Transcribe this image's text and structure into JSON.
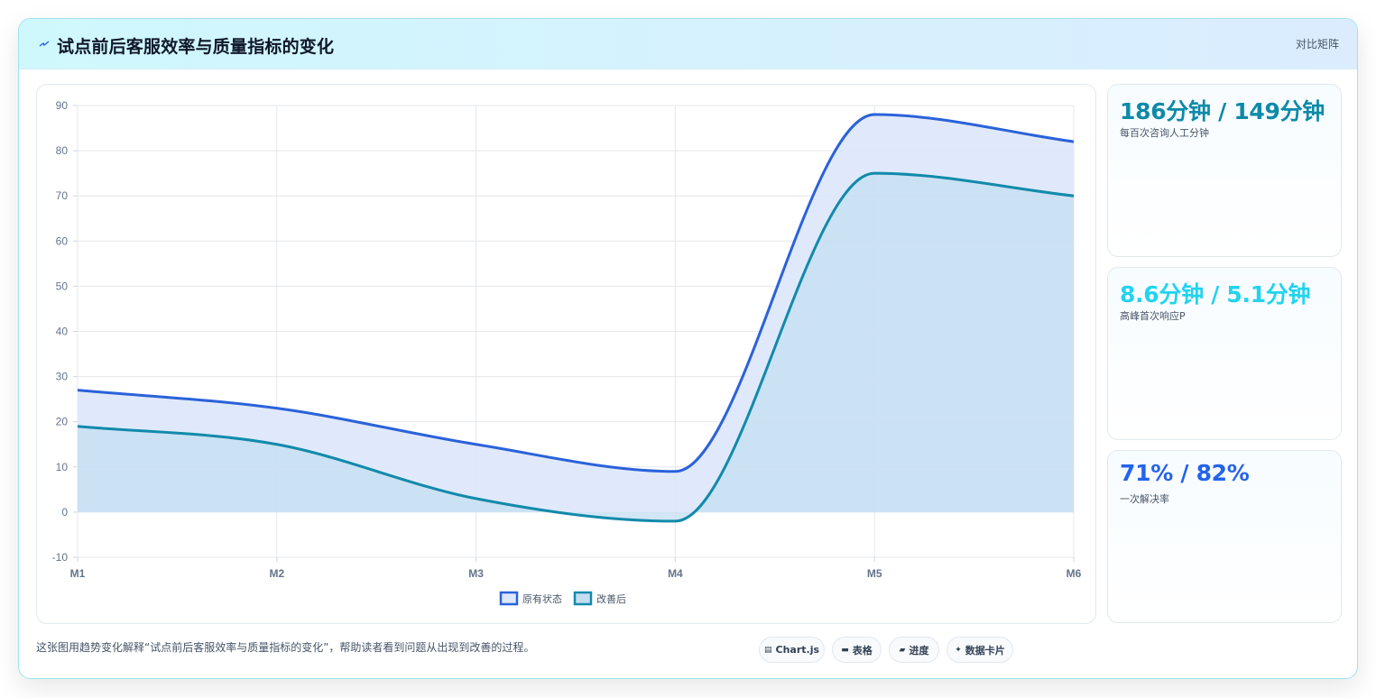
{
  "header": {
    "title": "试点前后客服效率与质量指标的变化",
    "action_label": "对比矩阵"
  },
  "stats": [
    {
      "value": "186分钟 / 149分钟",
      "label": "每百次咨询人工分钟",
      "color": "#0e8aa8"
    },
    {
      "value": "8.6分钟 / 5.1分钟",
      "label": "高峰首次响应P",
      "color": "#22d3ee"
    },
    {
      "value": "71% / 82%",
      "label": "一次解决率",
      "color": "#2563eb"
    }
  ],
  "footer": {
    "description": "这张图用趋势变化解释“试点前后客服效率与质量指标的变化”，帮助读者看到问题从出现到改善的过程。",
    "tags": [
      {
        "icon": "chart-icon",
        "glyph": "▤",
        "label": "Chart.js"
      },
      {
        "icon": "table-icon",
        "glyph": "▬",
        "label": "表格"
      },
      {
        "icon": "progress-icon",
        "glyph": "▰",
        "label": "进度"
      },
      {
        "icon": "sparkle-icon",
        "glyph": "✦",
        "label": "数据卡片"
      }
    ]
  },
  "chart_data": {
    "type": "area",
    "categories": [
      "M1",
      "M2",
      "M3",
      "M4",
      "M5",
      "M6"
    ],
    "series": [
      {
        "name": "原有状态",
        "values": [
          27,
          23,
          15,
          9,
          88,
          82
        ],
        "color": "#2b62d9",
        "fill": "#dde7fb"
      },
      {
        "name": "改善后",
        "values": [
          19,
          15,
          3,
          -2,
          75,
          70
        ],
        "color": "#128aab",
        "fill": "#c4ddf1"
      }
    ],
    "ylim": [
      -10,
      90
    ],
    "yticks": [
      -10,
      0,
      10,
      20,
      30,
      40,
      50,
      60,
      70,
      80,
      90
    ],
    "grid": true,
    "legend": "bottom"
  }
}
